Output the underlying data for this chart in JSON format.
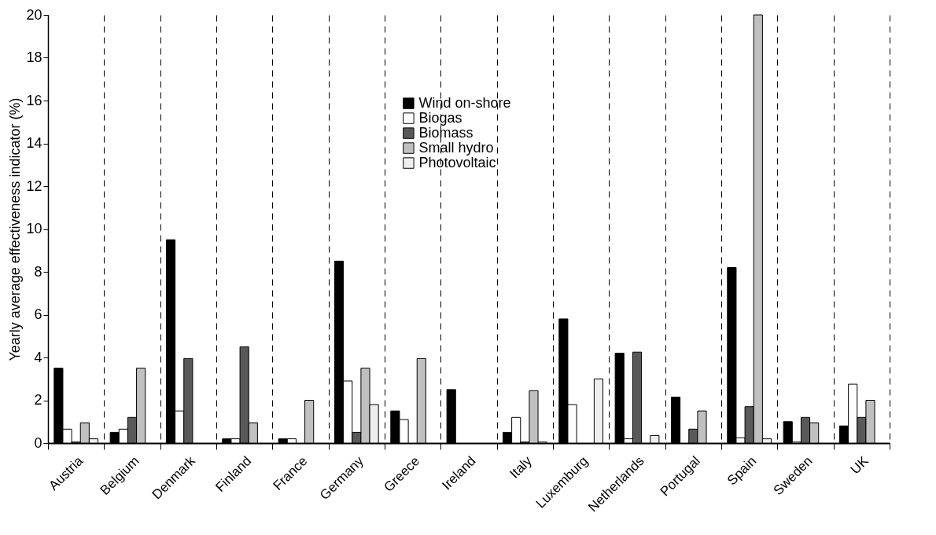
{
  "chart_data": {
    "type": "bar",
    "ylabel": "Yearly average effectiveness indicator (%)",
    "categories": [
      "Austria",
      "Belgium",
      "Denmark",
      "Finland",
      "France",
      "Germany",
      "Greece",
      "Ireland",
      "Italy",
      "Luxemburg",
      "Netherlands",
      "Portugal",
      "Spain",
      "Sweden",
      "UK"
    ],
    "series": [
      {
        "name": "Wind on-shore",
        "color": "#000000",
        "values": [
          3.5,
          0.5,
          9.5,
          0.2,
          0.2,
          8.5,
          1.5,
          2.5,
          0.5,
          5.8,
          4.2,
          2.15,
          8.2,
          1.0,
          0.8
        ]
      },
      {
        "name": "Biogas",
        "color": "#ffffff",
        "values": [
          0.65,
          0.65,
          1.5,
          0.2,
          0.2,
          2.9,
          1.1,
          null,
          1.2,
          1.8,
          0.2,
          null,
          0.25,
          0.05,
          2.75
        ]
      },
      {
        "name": "Biomass",
        "color": "#595959",
        "values": [
          0.05,
          1.2,
          3.95,
          4.5,
          null,
          0.5,
          null,
          null,
          0.05,
          null,
          4.25,
          0.65,
          1.7,
          1.2,
          1.2
        ]
      },
      {
        "name": "Small hydro",
        "color": "#c0c0c0",
        "values": [
          0.95,
          3.5,
          null,
          0.95,
          2.0,
          3.5,
          3.95,
          null,
          2.45,
          null,
          null,
          1.5,
          20,
          0.95,
          2.0
        ]
      },
      {
        "name": "Photovoltaic",
        "color": "#eeeeee",
        "values": [
          0.2,
          null,
          null,
          null,
          null,
          1.8,
          null,
          null,
          0.05,
          3.0,
          0.35,
          null,
          0.2,
          null,
          null
        ]
      }
    ],
    "ylim": [
      0,
      20
    ],
    "yticks": [
      0,
      2,
      4,
      6,
      8,
      10,
      12,
      14,
      16,
      18,
      20
    ],
    "grid": "x",
    "legend": "top"
  }
}
